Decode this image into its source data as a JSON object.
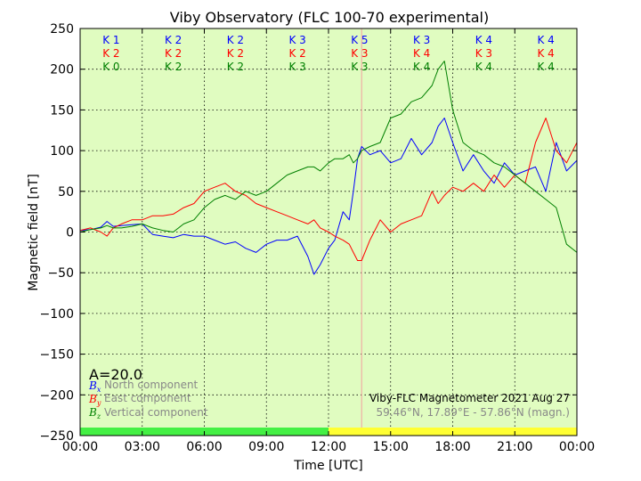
{
  "chart_data": {
    "type": "line",
    "title": "Viby Observatory (FLC 100-70 experimental)",
    "xlabel": "Time [UTC]",
    "ylabel": "Magnetic field [nT]",
    "xlim": [
      0,
      24
    ],
    "ylim": [
      -250,
      250
    ],
    "x_ticks": [
      "00:00",
      "03:00",
      "06:00",
      "09:00",
      "12:00",
      "15:00",
      "18:00",
      "21:00",
      "00:00"
    ],
    "y_ticks": [
      "250",
      "200",
      "150",
      "100",
      "50",
      "0",
      "−50",
      "−100",
      "−150",
      "−200",
      "−250"
    ],
    "grid": true,
    "background": "#e0fcc0",
    "marker_time": 13.6,
    "marker_color": "#f4a0a0",
    "k_indices": {
      "north": [
        "K 1",
        "K 2",
        "K 2",
        "K 3",
        "K 5",
        "K 3",
        "K 4",
        "K 4"
      ],
      "east": [
        "K 2",
        "K 2",
        "K 2",
        "K 2",
        "K 3",
        "K 4",
        "K 3",
        "K 4"
      ],
      "vertical": [
        "K 0",
        "K 2",
        "K 2",
        "K 3",
        "K 3",
        "K 4",
        "K 4",
        "K 4"
      ]
    },
    "status_bar": [
      {
        "from": 0,
        "to": 12,
        "color": "#44f044"
      },
      {
        "from": 12,
        "to": 24,
        "color": "#ffff33"
      }
    ],
    "series": [
      {
        "name": "North component",
        "symbol": "B",
        "subscript": "x",
        "color": "#0000ff",
        "x": [
          0,
          0.5,
          1,
          1.3,
          1.6,
          2,
          2.5,
          3,
          3.5,
          4,
          4.5,
          5,
          5.5,
          6,
          6.5,
          7,
          7.5,
          8,
          8.5,
          9,
          9.5,
          10,
          10.5,
          11,
          11.3,
          11.6,
          12,
          12.3,
          12.7,
          13,
          13.2,
          13.4,
          13.6,
          14,
          14.5,
          15,
          15.5,
          16,
          16.5,
          17,
          17.3,
          17.6,
          18,
          18.5,
          19,
          19.5,
          20,
          20.5,
          21,
          21.5,
          22,
          22.5,
          23,
          23.5,
          24
        ],
        "y": [
          2,
          3,
          6,
          13,
          7,
          8,
          9,
          10,
          -3,
          -5,
          -7,
          -3,
          -5,
          -5,
          -10,
          -15,
          -12,
          -20,
          -25,
          -15,
          -10,
          -10,
          -5,
          -30,
          -52,
          -40,
          -20,
          -10,
          25,
          15,
          50,
          90,
          105,
          95,
          100,
          85,
          90,
          115,
          95,
          110,
          130,
          140,
          110,
          75,
          95,
          75,
          60,
          85,
          70,
          75,
          80,
          50,
          110,
          75,
          88
        ]
      },
      {
        "name": "East component",
        "symbol": "B",
        "subscript": "y",
        "color": "#ff0000",
        "x": [
          0,
          0.5,
          1,
          1.3,
          1.6,
          2,
          2.5,
          3,
          3.5,
          4,
          4.5,
          5,
          5.5,
          6,
          6.5,
          7,
          7.5,
          8,
          8.5,
          9,
          9.5,
          10,
          10.5,
          11,
          11.3,
          11.6,
          12,
          12.3,
          12.7,
          13,
          13.2,
          13.4,
          13.6,
          14,
          14.5,
          15,
          15.5,
          16,
          16.5,
          17,
          17.3,
          17.6,
          18,
          18.5,
          19,
          19.5,
          20,
          20.5,
          21,
          21.5,
          22,
          22.5,
          23,
          23.5,
          24
        ],
        "y": [
          2,
          5,
          0,
          -5,
          5,
          10,
          15,
          15,
          20,
          20,
          22,
          30,
          35,
          50,
          55,
          60,
          50,
          45,
          35,
          30,
          25,
          20,
          15,
          10,
          15,
          5,
          0,
          -5,
          -10,
          -15,
          -25,
          -35,
          -35,
          -10,
          15,
          0,
          10,
          15,
          20,
          50,
          35,
          45,
          55,
          50,
          60,
          50,
          70,
          55,
          70,
          60,
          110,
          140,
          100,
          85,
          110
        ]
      },
      {
        "name": "Vertical component",
        "symbol": "B",
        "subscript": "z",
        "color": "#008000",
        "x": [
          0,
          0.5,
          1,
          1.3,
          1.6,
          2,
          2.5,
          3,
          3.5,
          4,
          4.5,
          5,
          5.5,
          6,
          6.5,
          7,
          7.5,
          8,
          8.5,
          9,
          9.5,
          10,
          10.5,
          11,
          11.3,
          11.6,
          12,
          12.3,
          12.7,
          13,
          13.2,
          13.4,
          13.6,
          14,
          14.5,
          15,
          15.5,
          16,
          16.5,
          17,
          17.3,
          17.6,
          18,
          18.5,
          19,
          19.5,
          20,
          20.5,
          21,
          21.5,
          22,
          22.5,
          23,
          23.5,
          24
        ],
        "y": [
          0,
          3,
          5,
          8,
          5,
          5,
          7,
          10,
          5,
          2,
          0,
          10,
          15,
          30,
          40,
          45,
          40,
          50,
          45,
          50,
          60,
          70,
          75,
          80,
          80,
          75,
          85,
          90,
          90,
          95,
          85,
          90,
          100,
          105,
          110,
          140,
          145,
          160,
          165,
          180,
          200,
          210,
          150,
          110,
          100,
          95,
          85,
          80,
          70,
          60,
          50,
          40,
          30,
          -15,
          -25
        ]
      }
    ],
    "annotations": {
      "a_index": "A=20.0",
      "station": "Viby-FLC Magnetometer 2021 Aug 27",
      "coords": "59.46°N, 17.89°E - 57.86°N (magn.)"
    }
  }
}
